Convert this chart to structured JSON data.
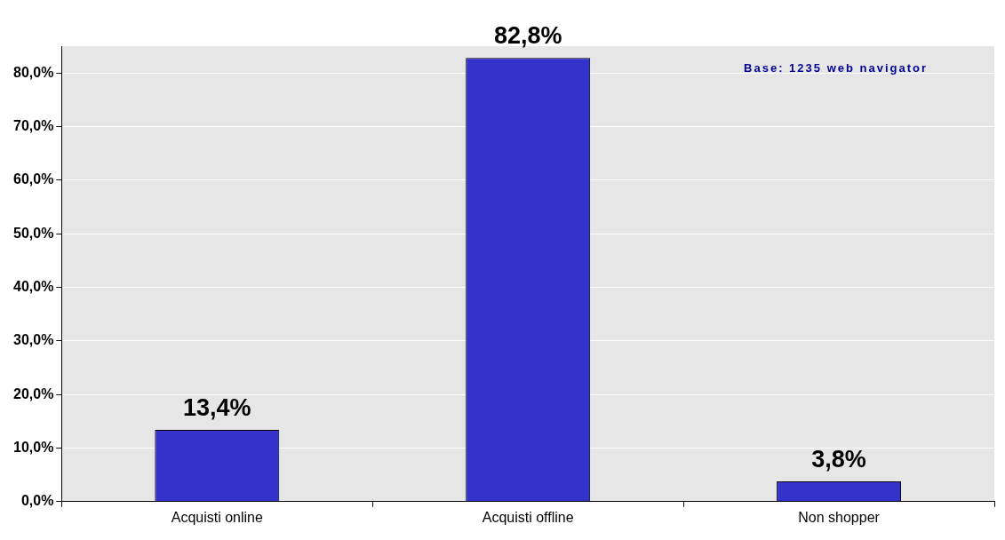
{
  "chart_data": {
    "type": "bar",
    "categories": [
      "Acquisti online",
      "Acquisti offline",
      "Non shopper"
    ],
    "series": [
      {
        "color": "#3333cc",
        "values": [
          13.4,
          82.8,
          3.8
        ],
        "value_labels": [
          "13,4%",
          "82,8%",
          "3,8%"
        ]
      }
    ],
    "ylim": [
      0,
      85
    ],
    "yticks": [
      {
        "value": 0,
        "label": "0,0%"
      },
      {
        "value": 10,
        "label": "10,0%"
      },
      {
        "value": 20,
        "label": "20,0%"
      },
      {
        "value": 30,
        "label": "30,0%"
      },
      {
        "value": 40,
        "label": "40,0%"
      },
      {
        "value": 50,
        "label": "50,0%"
      },
      {
        "value": 60,
        "label": "60,0%"
      },
      {
        "value": 70,
        "label": "70,0%"
      },
      {
        "value": 80,
        "label": "80,0%"
      }
    ],
    "grid": "y",
    "legend": false,
    "annotations": [
      "Base: 1235 web navigator"
    ]
  }
}
